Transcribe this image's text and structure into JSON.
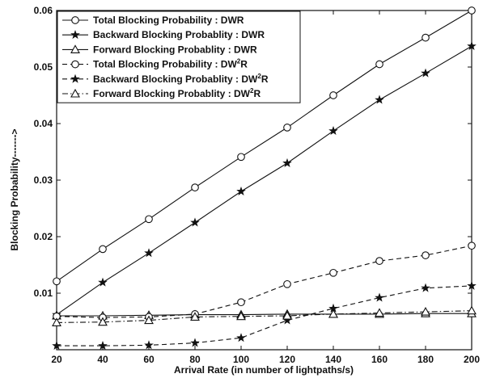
{
  "chart_data": {
    "type": "line",
    "xlabel": "Arrival Rate (in number of lightpaths/s)",
    "ylabel": "Blocking Probability------->",
    "xlim": [
      20,
      200
    ],
    "ylim": [
      0,
      0.06
    ],
    "x_ticks": [
      "20",
      "40",
      "60",
      "80",
      "100",
      "120",
      "140",
      "160",
      "180",
      "200"
    ],
    "y_ticks": [
      "0.01",
      "0.02",
      "0.03",
      "0.04",
      "0.05",
      "0.06"
    ],
    "x": [
      20,
      40,
      60,
      80,
      100,
      120,
      140,
      160,
      180,
      200
    ],
    "grid": false,
    "legend_position": "top-left",
    "series": [
      {
        "name": "Total Blocking Probability : DWR",
        "name_prefix": "Total Blocking Probability : DWR",
        "name_sup": "",
        "name_suffix": "",
        "marker": "circle",
        "line": "solid",
        "values": [
          0.0121,
          0.0178,
          0.0231,
          0.0287,
          0.0341,
          0.0393,
          0.045,
          0.0505,
          0.0552,
          0.06
        ]
      },
      {
        "name": "Backward Blocking Probablity : DWR",
        "name_prefix": "Backward Blocking Probablity : DWR",
        "name_sup": "",
        "name_suffix": "",
        "marker": "star",
        "line": "solid",
        "values": [
          0.0062,
          0.0119,
          0.0171,
          0.0225,
          0.028,
          0.033,
          0.0387,
          0.0442,
          0.0489,
          0.0537
        ]
      },
      {
        "name": "Forward Blocking Probablity : DWR",
        "name_prefix": "Forward Blocking Probablity : DWR",
        "name_sup": "",
        "name_suffix": "",
        "marker": "triangle",
        "line": "solid",
        "values": [
          0.006,
          0.006,
          0.0061,
          0.0062,
          0.0062,
          0.0063,
          0.0063,
          0.0063,
          0.0064,
          0.0064
        ]
      },
      {
        "name": "Total Blocking Probability : DW2R",
        "name_prefix": "Total Blocking Probability : DW",
        "name_sup": "2",
        "name_suffix": "R",
        "marker": "circle",
        "line": "dashed",
        "values": [
          0.0059,
          0.0057,
          0.0058,
          0.0063,
          0.0084,
          0.0116,
          0.0136,
          0.0157,
          0.0167,
          0.0184
        ]
      },
      {
        "name": "Backward Blocking Probablity : DW2R",
        "name_prefix": "Backward Blocking Probablity : DW",
        "name_sup": "2",
        "name_suffix": "R",
        "marker": "star",
        "line": "dashed",
        "values": [
          0.0007,
          0.0007,
          0.0008,
          0.0012,
          0.0021,
          0.0052,
          0.0073,
          0.0092,
          0.0109,
          0.0113
        ]
      },
      {
        "name": "Forward Blocking Probablity : DW2R",
        "name_prefix": "Forward Blocking Probablity : DW",
        "name_sup": "2",
        "name_suffix": "R",
        "marker": "triangle",
        "line": "dashdot",
        "values": [
          0.0048,
          0.0049,
          0.0052,
          0.0058,
          0.0059,
          0.006,
          0.0063,
          0.0065,
          0.0067,
          0.0069
        ]
      }
    ]
  }
}
